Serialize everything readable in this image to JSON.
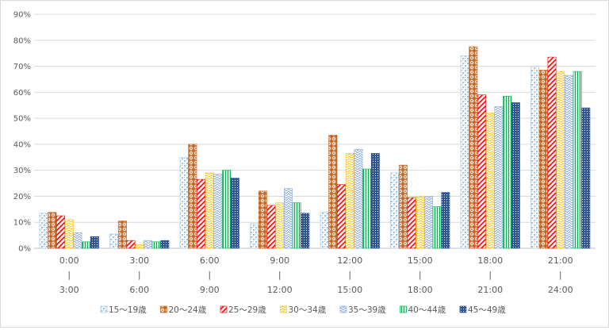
{
  "chart_data": {
    "type": "bar",
    "title": "",
    "xlabel": "",
    "ylabel": "",
    "ylim": [
      0,
      90
    ],
    "y_ticks": [
      "0%",
      "10%",
      "20%",
      "30%",
      "40%",
      "50%",
      "60%",
      "70%",
      "80%",
      "90%"
    ],
    "grid": true,
    "legend_position": "bottom",
    "categories": [
      {
        "start": "0:00",
        "sep": "|",
        "end": "3:00"
      },
      {
        "start": "3:00",
        "sep": "|",
        "end": "6:00"
      },
      {
        "start": "6:00",
        "sep": "|",
        "end": "9:00"
      },
      {
        "start": "9:00",
        "sep": "|",
        "end": "12:00"
      },
      {
        "start": "12:00",
        "sep": "|",
        "end": "15:00"
      },
      {
        "start": "15:00",
        "sep": "|",
        "end": "18:00"
      },
      {
        "start": "18:00",
        "sep": "|",
        "end": "21:00"
      },
      {
        "start": "21:00",
        "sep": "|",
        "end": "24:00"
      }
    ],
    "series": [
      {
        "name": "15～19歳",
        "color": "#9dc3e6",
        "pattern": "dots",
        "values": [
          13.5,
          5.5,
          35.0,
          9.5,
          14.0,
          29.0,
          74.0,
          70.0
        ]
      },
      {
        "name": "20～24歳",
        "color": "#c55a11",
        "pattern": "grid",
        "values": [
          13.8,
          10.5,
          40.0,
          22.0,
          43.5,
          32.0,
          77.5,
          68.5
        ]
      },
      {
        "name": "25～29歳",
        "color": "#ff0000",
        "pattern": "diag",
        "values": [
          12.5,
          3.0,
          26.5,
          16.5,
          24.5,
          19.5,
          59.0,
          73.5
        ]
      },
      {
        "name": "30～34歳",
        "color": "#ffc000",
        "pattern": "waves",
        "values": [
          11.0,
          1.5,
          29.0,
          17.5,
          36.5,
          20.0,
          52.0,
          68.0
        ]
      },
      {
        "name": "35～39歳",
        "color": "#8faadc",
        "pattern": "zigzag",
        "values": [
          6.0,
          3.0,
          28.5,
          23.0,
          38.0,
          20.0,
          54.5,
          66.5
        ]
      },
      {
        "name": "40～44歳",
        "color": "#00b050",
        "pattern": "vlines",
        "values": [
          2.5,
          2.5,
          30.0,
          17.5,
          30.5,
          16.0,
          58.5,
          68.0
        ]
      },
      {
        "name": "45～49歳",
        "color": "#2f5597",
        "pattern": "checker",
        "values": [
          4.5,
          3.0,
          27.0,
          13.5,
          36.5,
          21.5,
          56.0,
          54.0
        ]
      }
    ]
  }
}
